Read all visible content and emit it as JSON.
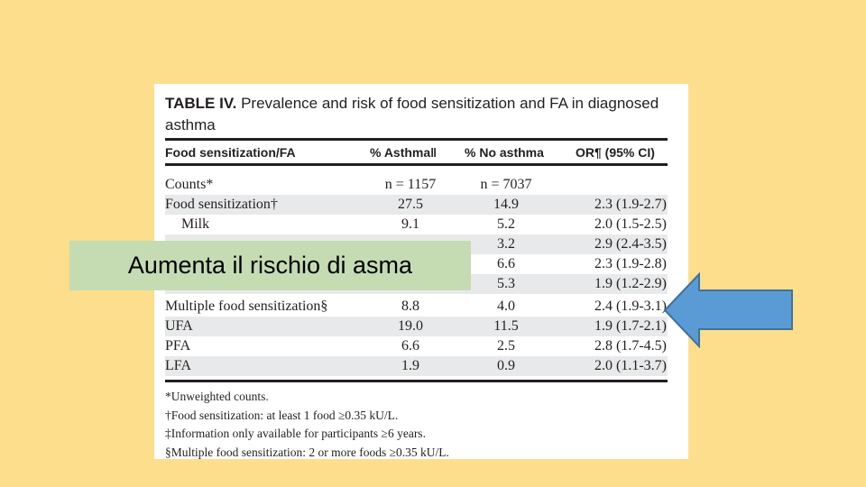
{
  "table": {
    "caption_bold": "TABLE IV.",
    "caption_rest": " Prevalence and risk of food sensitization and FA in diagnosed asthma",
    "headers": [
      "Food sensitization/FA",
      "% Asthma‖",
      "% No asthma",
      "OR¶ (95% CI)"
    ],
    "rows": [
      {
        "label": "Counts*",
        "asthma": "n = 1157",
        "no_asthma": "n = 7037",
        "or": ""
      },
      {
        "label": "Food sensitization†",
        "asthma": "27.5",
        "no_asthma": "14.9",
        "or": "2.3 (1.9-2.7)"
      },
      {
        "label": "Milk",
        "asthma": "9.1",
        "no_asthma": "5.2",
        "or": "2.0 (1.5-2.5)"
      },
      {
        "label": "",
        "asthma": "",
        "no_asthma": "3.2",
        "or": "2.9 (2.4-3.5)"
      },
      {
        "label": "",
        "asthma": "",
        "no_asthma": "6.6",
        "or": "2.3 (1.9-2.8)"
      },
      {
        "label": "",
        "asthma": "",
        "no_asthma": "5.3",
        "or": "1.9 (1.2-2.9)"
      },
      {
        "label": "Multiple food sensitization§",
        "asthma": "8.8",
        "no_asthma": "4.0",
        "or": "2.4 (1.9-3.1)"
      },
      {
        "label": "UFA",
        "asthma": "19.0",
        "no_asthma": "11.5",
        "or": "1.9 (1.7-2.1)"
      },
      {
        "label": "PFA",
        "asthma": "6.6",
        "no_asthma": "2.5",
        "or": "2.8 (1.7-4.5)"
      },
      {
        "label": "LFA",
        "asthma": "1.9",
        "no_asthma": "0.9",
        "or": "2.0 (1.1-3.7)"
      }
    ],
    "footnotes": [
      "*Unweighted counts.",
      "†Food sensitization: at least 1 food ≥0.35 kU/L.",
      "‡Information only available for participants ≥6 years.",
      "§Multiple food sensitization: 2 or more foods ≥0.35 kU/L."
    ]
  },
  "callout_text": "Aumenta il rischio di asma",
  "colors": {
    "background": "#fcde8c",
    "callout": "#c5dcb3",
    "arrow_fill": "#5b9bd5",
    "arrow_stroke": "#41719c"
  },
  "icons": {
    "arrow": "left-arrow-icon"
  }
}
